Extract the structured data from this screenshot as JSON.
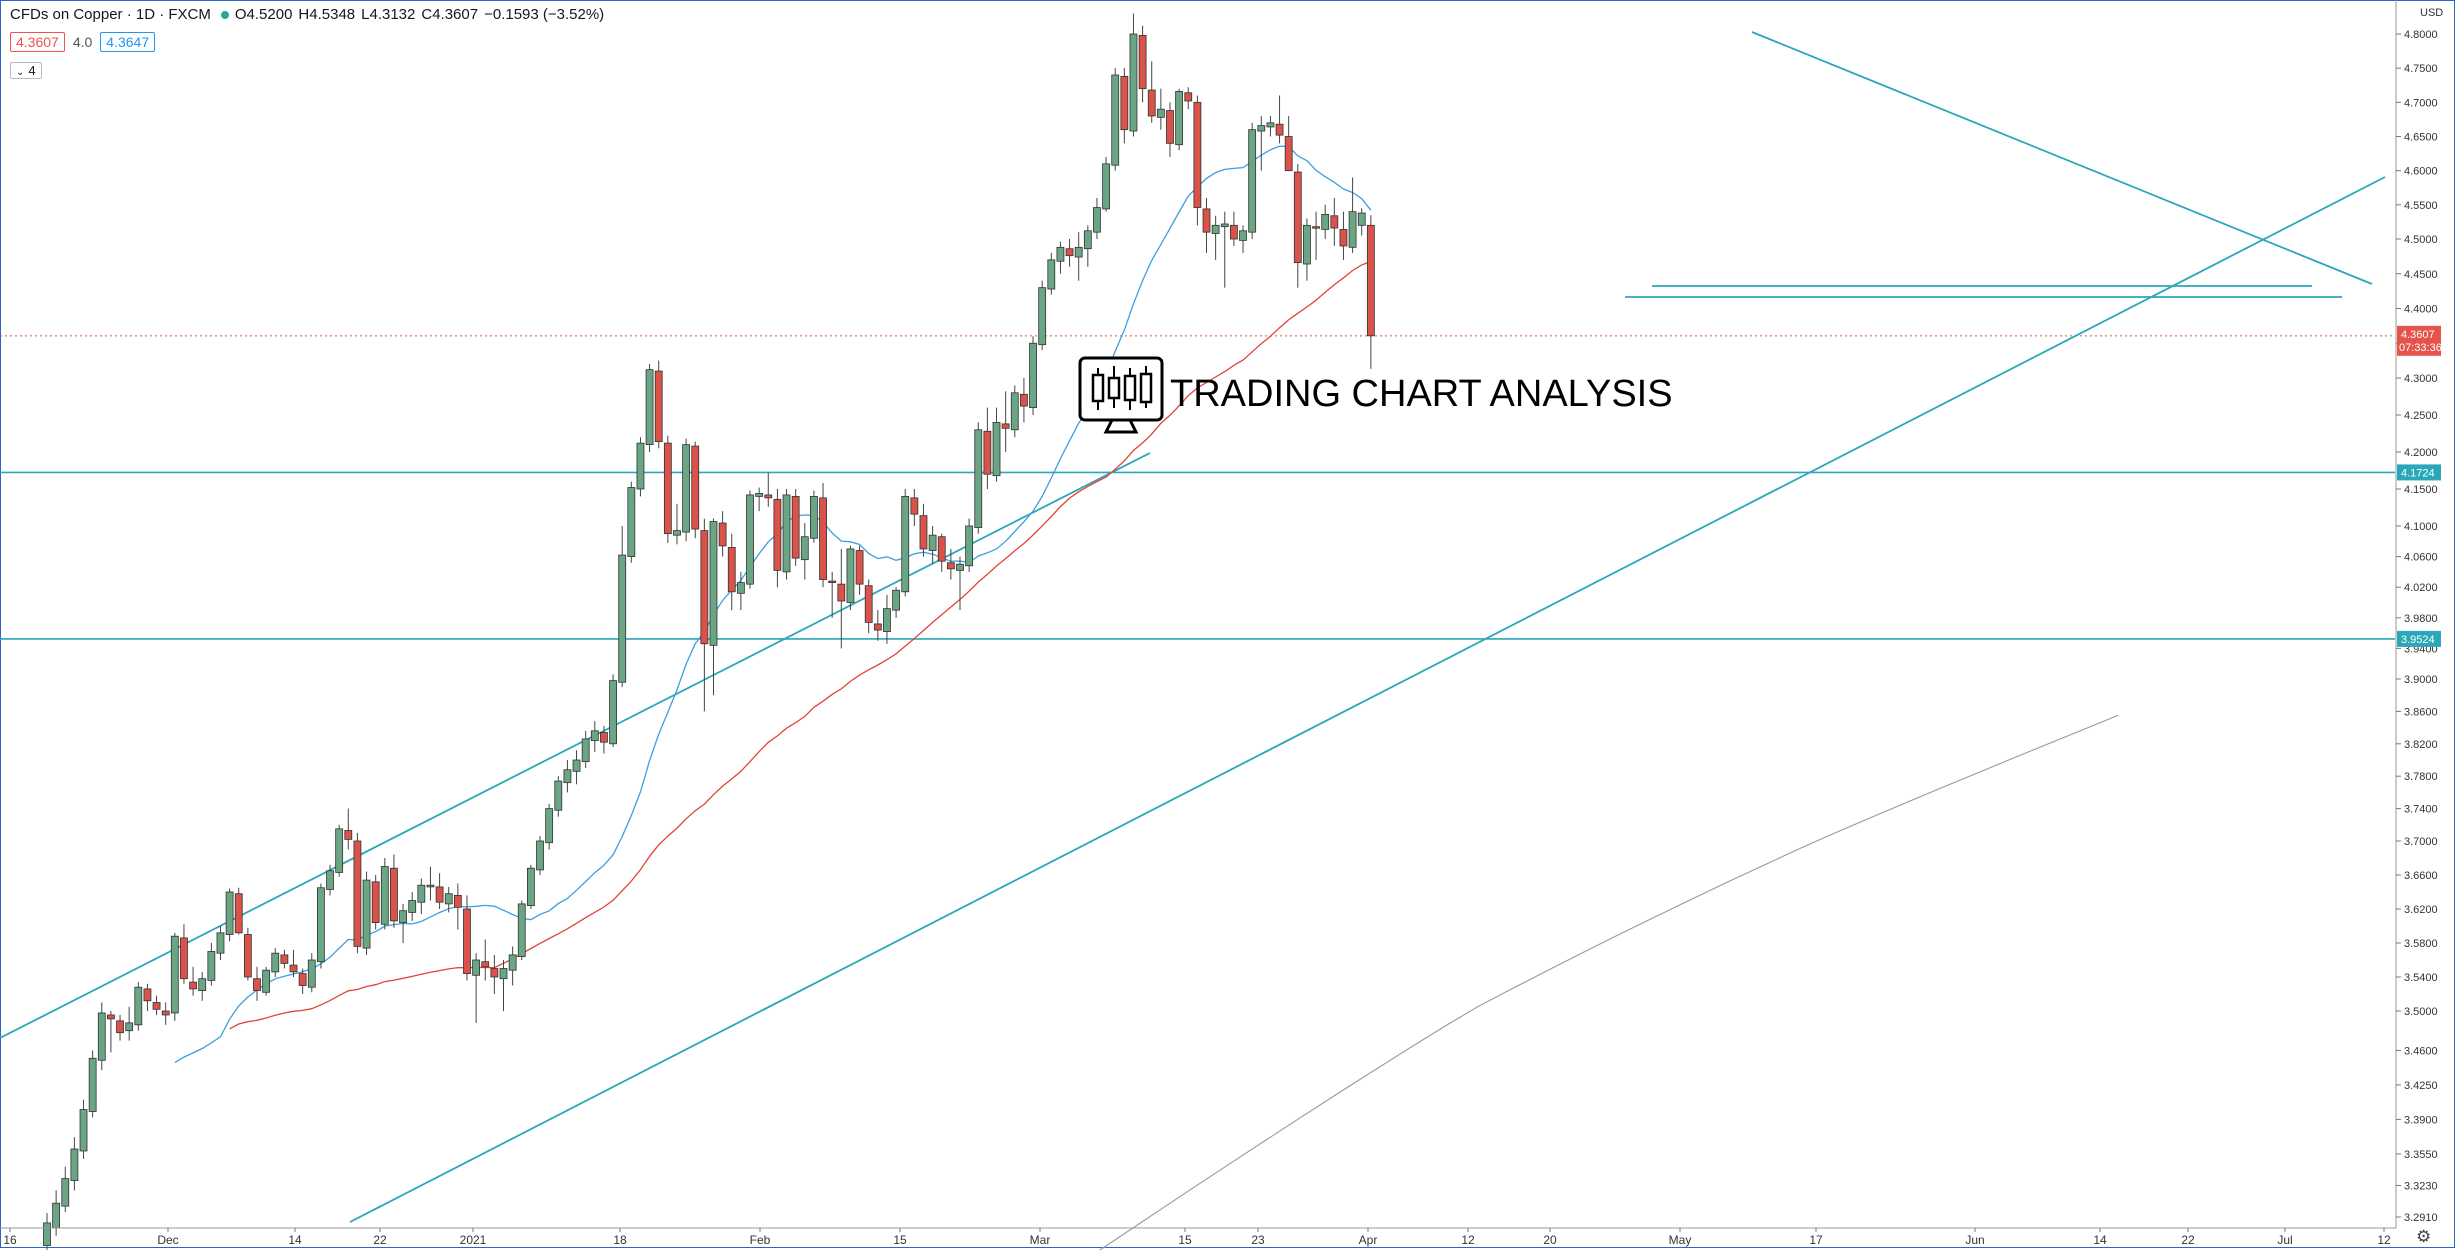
{
  "header": {
    "title": "CFDs on Copper · 1D · FXCM",
    "open": "O4.5200",
    "high": "H4.5348",
    "low": "L4.3132",
    "close": "C4.3607",
    "change": "−0.1593 (−3.52%)"
  },
  "indicators": {
    "ma1": "4.3607",
    "ma_plain": "4.0",
    "ma2": "4.3647"
  },
  "legend_toggle": "4",
  "currency": "USD",
  "logo_text": "TRADING CHART ANALYSIS",
  "colors": {
    "up": "#6aa584",
    "down": "#d9534a",
    "trendline": "#2aa7b8",
    "ma20": "#3d9fe0",
    "ma50": "#e0443a",
    "ma200": "#999999",
    "price_badge": "#e5534b",
    "level_badge": "#2aa7b8"
  },
  "chart_data": {
    "type": "candlestick",
    "yaxis": {
      "ticks": [
        "4.8000",
        "4.7500",
        "4.7000",
        "4.6500",
        "4.6000",
        "4.5500",
        "4.5000",
        "4.4500",
        "4.4000",
        "4.3500",
        "4.3000",
        "4.2500",
        "4.2000",
        "4.1500",
        "4.1000",
        "4.0600",
        "4.0200",
        "3.9800",
        "3.9400",
        "3.9000",
        "3.8600",
        "3.8200",
        "3.7800",
        "3.7400",
        "3.7000",
        "3.6600",
        "3.6200",
        "3.5800",
        "3.5400",
        "3.5000",
        "3.4600",
        "3.4250",
        "3.3900",
        "3.3550",
        "3.3230",
        "3.2910"
      ],
      "ylim": [
        3.25,
        4.83
      ]
    },
    "xaxis": {
      "ticks": [
        "16",
        "Dec",
        "14",
        "22",
        "2021",
        "18",
        "Feb",
        "15",
        "Mar",
        "15",
        "23",
        "Apr",
        "12",
        "20",
        "May",
        "17",
        "Jun",
        "14",
        "22",
        "Jul",
        "12"
      ]
    },
    "price_now": {
      "value": "4.3607",
      "countdown": "07:33:36"
    },
    "levels": [
      {
        "value": 4.1724,
        "label": "4.1724"
      },
      {
        "value": 3.9524,
        "label": "3.9524"
      }
    ],
    "candles": [
      [
        3.262,
        3.295,
        3.255,
        3.285
      ],
      [
        3.28,
        3.318,
        3.272,
        3.305
      ],
      [
        3.302,
        3.342,
        3.296,
        3.33
      ],
      [
        3.328,
        3.372,
        3.318,
        3.36
      ],
      [
        3.358,
        3.41,
        3.35,
        3.4
      ],
      [
        3.398,
        3.46,
        3.392,
        3.452
      ],
      [
        3.45,
        3.51,
        3.44,
        3.498
      ],
      [
        3.496,
        3.5,
        3.458,
        3.492
      ],
      [
        3.49,
        3.496,
        3.47,
        3.478
      ],
      [
        3.48,
        3.505,
        3.47,
        3.488
      ],
      [
        3.486,
        3.534,
        3.48,
        3.528
      ],
      [
        3.526,
        3.532,
        3.5,
        3.512
      ],
      [
        3.51,
        3.518,
        3.496,
        3.502
      ],
      [
        3.5,
        3.51,
        3.486,
        3.496
      ],
      [
        3.498,
        3.592,
        3.49,
        3.588
      ],
      [
        3.586,
        3.602,
        3.532,
        3.538
      ],
      [
        3.534,
        3.552,
        3.518,
        3.526
      ],
      [
        3.524,
        3.546,
        3.512,
        3.538
      ],
      [
        3.536,
        3.58,
        3.53,
        3.57
      ],
      [
        3.568,
        3.6,
        3.56,
        3.592
      ],
      [
        3.59,
        3.644,
        3.582,
        3.64
      ],
      [
        3.638,
        3.645,
        3.59,
        3.592
      ],
      [
        3.59,
        3.598,
        3.536,
        3.54
      ],
      [
        3.538,
        3.552,
        3.512,
        3.524
      ],
      [
        3.522,
        3.552,
        3.518,
        3.548
      ],
      [
        3.546,
        3.574,
        3.54,
        3.568
      ],
      [
        3.566,
        3.572,
        3.55,
        3.556
      ],
      [
        3.554,
        3.572,
        3.54,
        3.546
      ],
      [
        3.544,
        3.55,
        3.52,
        3.53
      ],
      [
        3.528,
        3.568,
        3.522,
        3.56
      ],
      [
        3.558,
        3.65,
        3.55,
        3.645
      ],
      [
        3.643,
        3.672,
        3.636,
        3.665
      ],
      [
        3.663,
        3.72,
        3.658,
        3.715
      ],
      [
        3.713,
        3.74,
        3.69,
        3.702
      ],
      [
        3.7,
        3.71,
        3.568,
        3.576
      ],
      [
        3.574,
        3.664,
        3.566,
        3.654
      ],
      [
        3.652,
        3.66,
        3.596,
        3.604
      ],
      [
        3.602,
        3.68,
        3.596,
        3.67
      ],
      [
        3.668,
        3.684,
        3.598,
        3.606
      ],
      [
        3.604,
        3.626,
        3.58,
        3.618
      ],
      [
        3.616,
        3.64,
        3.606,
        3.63
      ],
      [
        3.628,
        3.656,
        3.614,
        3.648
      ],
      [
        3.646,
        3.67,
        3.63,
        3.648
      ],
      [
        3.646,
        3.662,
        3.62,
        3.628
      ],
      [
        3.626,
        3.646,
        3.616,
        3.638
      ],
      [
        3.636,
        3.65,
        3.596,
        3.622
      ],
      [
        3.62,
        3.636,
        3.536,
        3.544
      ],
      [
        3.542,
        3.568,
        3.488,
        3.56
      ],
      [
        3.558,
        3.584,
        3.536,
        3.552
      ],
      [
        3.55,
        3.566,
        3.52,
        3.54
      ],
      [
        3.538,
        3.56,
        3.5,
        3.55
      ],
      [
        3.548,
        3.576,
        3.53,
        3.566
      ],
      [
        3.564,
        3.63,
        3.56,
        3.626
      ],
      [
        3.624,
        3.672,
        3.62,
        3.668
      ],
      [
        3.666,
        3.706,
        3.66,
        3.7
      ],
      [
        3.698,
        3.746,
        3.69,
        3.74
      ],
      [
        3.738,
        3.78,
        3.73,
        3.774
      ],
      [
        3.772,
        3.8,
        3.76,
        3.788
      ],
      [
        3.786,
        3.812,
        3.77,
        3.8
      ],
      [
        3.798,
        3.836,
        3.79,
        3.826
      ],
      [
        3.824,
        3.848,
        3.81,
        3.836
      ],
      [
        3.834,
        3.842,
        3.808,
        3.822
      ],
      [
        3.82,
        3.906,
        3.816,
        3.898
      ],
      [
        3.896,
        4.1,
        3.89,
        4.062
      ],
      [
        4.06,
        4.16,
        4.052,
        4.152
      ],
      [
        4.15,
        4.22,
        4.14,
        4.212
      ],
      [
        4.21,
        4.32,
        4.2,
        4.312
      ],
      [
        4.31,
        4.325,
        4.205,
        4.214
      ],
      [
        4.212,
        4.222,
        4.078,
        4.09
      ],
      [
        4.088,
        4.13,
        4.076,
        4.094
      ],
      [
        4.092,
        4.218,
        4.08,
        4.21
      ],
      [
        4.208,
        4.214,
        4.084,
        4.096
      ],
      [
        4.094,
        4.11,
        3.86,
        3.946
      ],
      [
        3.944,
        4.11,
        3.88,
        4.106
      ],
      [
        4.104,
        4.12,
        4.06,
        4.074
      ],
      [
        4.072,
        4.09,
        3.99,
        4.014
      ],
      [
        4.012,
        4.04,
        3.99,
        4.026
      ],
      [
        4.024,
        4.148,
        4.018,
        4.142
      ],
      [
        4.14,
        4.152,
        4.12,
        4.144
      ],
      [
        4.142,
        4.172,
        4.126,
        4.138
      ],
      [
        4.136,
        4.15,
        4.02,
        4.042
      ],
      [
        4.04,
        4.15,
        4.03,
        4.142
      ],
      [
        4.14,
        4.15,
        4.048,
        4.058
      ],
      [
        4.056,
        4.104,
        4.03,
        4.086
      ],
      [
        4.084,
        4.148,
        4.078,
        4.14
      ],
      [
        4.138,
        4.158,
        4.02,
        4.03
      ],
      [
        4.028,
        4.04,
        3.98,
        4.026
      ],
      [
        4.024,
        4.07,
        3.94,
        4.002
      ],
      [
        4.0,
        4.074,
        3.99,
        4.07
      ],
      [
        4.068,
        4.074,
        4.01,
        4.024
      ],
      [
        4.022,
        4.03,
        3.96,
        3.974
      ],
      [
        3.972,
        3.99,
        3.95,
        3.964
      ],
      [
        3.962,
        4.01,
        3.946,
        3.992
      ],
      [
        3.99,
        4.02,
        3.98,
        4.016
      ],
      [
        4.014,
        4.15,
        4.008,
        4.14
      ],
      [
        4.138,
        4.15,
        4.1,
        4.116
      ],
      [
        4.114,
        4.13,
        4.06,
        4.07
      ],
      [
        4.068,
        4.1,
        4.05,
        4.088
      ],
      [
        4.086,
        4.09,
        4.04,
        4.054
      ],
      [
        4.052,
        4.07,
        4.03,
        4.044
      ],
      [
        4.042,
        4.06,
        3.99,
        4.05
      ],
      [
        4.048,
        4.11,
        4.04,
        4.1
      ],
      [
        4.098,
        4.24,
        4.09,
        4.23
      ],
      [
        4.228,
        4.26,
        4.15,
        4.17
      ],
      [
        4.168,
        4.26,
        4.16,
        4.24
      ],
      [
        4.238,
        4.282,
        4.2,
        4.232
      ],
      [
        4.23,
        4.29,
        4.22,
        4.28
      ],
      [
        4.278,
        4.3,
        4.24,
        4.262
      ],
      [
        4.26,
        4.36,
        4.25,
        4.35
      ],
      [
        4.348,
        4.44,
        4.34,
        4.43
      ],
      [
        4.428,
        4.48,
        4.42,
        4.47
      ],
      [
        4.468,
        4.496,
        4.45,
        4.488
      ],
      [
        4.486,
        4.5,
        4.46,
        4.476
      ],
      [
        4.474,
        4.51,
        4.44,
        4.488
      ],
      [
        4.486,
        4.52,
        4.46,
        4.512
      ],
      [
        4.51,
        4.56,
        4.5,
        4.546
      ],
      [
        4.544,
        4.62,
        4.54,
        4.61
      ],
      [
        4.608,
        4.75,
        4.6,
        4.74
      ],
      [
        4.738,
        4.75,
        4.64,
        4.66
      ],
      [
        4.658,
        4.83,
        4.65,
        4.8
      ],
      [
        4.798,
        4.812,
        4.7,
        4.72
      ],
      [
        4.718,
        4.76,
        4.67,
        4.68
      ],
      [
        4.678,
        4.72,
        4.66,
        4.69
      ],
      [
        4.688,
        4.7,
        4.62,
        4.64
      ],
      [
        4.638,
        4.72,
        4.63,
        4.716
      ],
      [
        4.714,
        4.722,
        4.69,
        4.702
      ],
      [
        4.7,
        4.71,
        4.52,
        4.546
      ],
      [
        4.544,
        4.56,
        4.48,
        4.51
      ],
      [
        4.508,
        4.534,
        4.47,
        4.52
      ],
      [
        4.518,
        4.54,
        4.43,
        4.522
      ],
      [
        4.52,
        4.54,
        4.49,
        4.5
      ],
      [
        4.498,
        4.52,
        4.48,
        4.512
      ],
      [
        4.51,
        4.67,
        4.5,
        4.66
      ],
      [
        4.658,
        4.68,
        4.6,
        4.666
      ],
      [
        4.664,
        4.68,
        4.65,
        4.67
      ],
      [
        4.668,
        4.71,
        4.64,
        4.652
      ],
      [
        4.65,
        4.68,
        4.6,
        4.6
      ],
      [
        4.598,
        4.61,
        4.43,
        4.466
      ],
      [
        4.464,
        4.53,
        4.44,
        4.52
      ],
      [
        4.518,
        4.54,
        4.47,
        4.516
      ],
      [
        4.514,
        4.55,
        4.5,
        4.536
      ],
      [
        4.534,
        4.56,
        4.49,
        4.516
      ],
      [
        4.514,
        4.54,
        4.47,
        4.49
      ],
      [
        4.488,
        4.59,
        4.48,
        4.54
      ],
      [
        4.52,
        4.545,
        4.505,
        4.538
      ],
      [
        4.52,
        4.5348,
        4.3132,
        4.3607
      ]
    ]
  }
}
